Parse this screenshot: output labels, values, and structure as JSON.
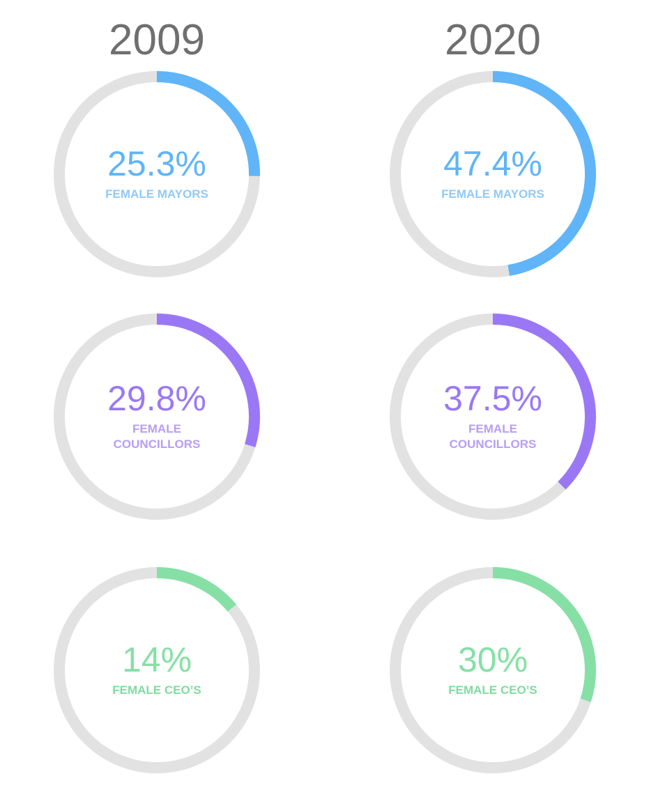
{
  "chart_data": {
    "type": "pie",
    "years": [
      "2009",
      "2020"
    ],
    "colors": {
      "track": "#e2e2e2",
      "mayors": "#5fb5f8",
      "councillors": "#9a78f5",
      "ceos": "#86e0a6",
      "mayors_label": "#8fcaf7",
      "councillors_label": "#b79df7",
      "ceos_label": "#7fdca0"
    },
    "rows": [
      {
        "metric": "mayors",
        "label": "FEMALE MAYORS",
        "values": [
          25.3,
          47.4
        ],
        "texts": [
          "25.3%",
          "47.4%"
        ]
      },
      {
        "metric": "councillors",
        "label": "FEMALE COUNCILLORS",
        "values": [
          29.8,
          37.5
        ],
        "texts": [
          "29.8%",
          "37.5%"
        ]
      },
      {
        "metric": "ceos",
        "label": "FEMALE CEO’S",
        "values": [
          14,
          30
        ],
        "texts": [
          "14%",
          "30%"
        ]
      }
    ]
  }
}
